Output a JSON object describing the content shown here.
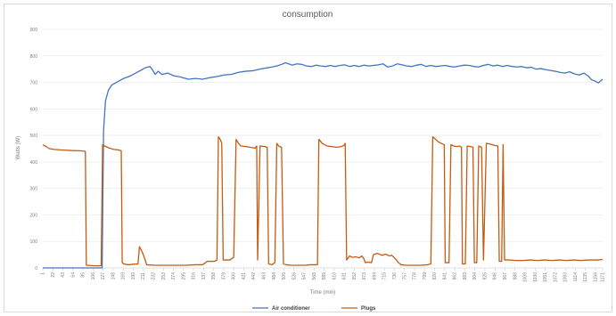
{
  "chart_data": {
    "type": "line",
    "title": "consumption",
    "xlabel": "Time (min)",
    "ylabel": "Watts (W)",
    "ylim": [
      0,
      900
    ],
    "yticks": [
      0,
      100,
      200,
      300,
      400,
      500,
      600,
      700,
      800,
      900
    ],
    "xlim": [
      1,
      1171
    ],
    "xticks": [
      1,
      22,
      43,
      64,
      85,
      106,
      127,
      148,
      169,
      190,
      211,
      232,
      253,
      274,
      295,
      316,
      337,
      358,
      379,
      400,
      421,
      442,
      463,
      484,
      505,
      526,
      547,
      568,
      589,
      610,
      631,
      652,
      673,
      694,
      715,
      736,
      757,
      778,
      799,
      820,
      841,
      862,
      883,
      904,
      925,
      946,
      967,
      988,
      1009,
      1030,
      1051,
      1072,
      1093,
      1114,
      1135,
      1156,
      1171
    ],
    "grid": "horizontal",
    "legend_position": "bottom",
    "series": [
      {
        "name": "Air conditioner",
        "color": "#4472c4",
        "points": [
          [
            1,
            0
          ],
          [
            30,
            0
          ],
          [
            60,
            0
          ],
          [
            90,
            0
          ],
          [
            120,
            0
          ],
          [
            125,
            0
          ],
          [
            128,
            520
          ],
          [
            132,
            630
          ],
          [
            138,
            670
          ],
          [
            145,
            690
          ],
          [
            155,
            700
          ],
          [
            170,
            715
          ],
          [
            185,
            725
          ],
          [
            200,
            740
          ],
          [
            215,
            755
          ],
          [
            225,
            760
          ],
          [
            230,
            748
          ],
          [
            236,
            730
          ],
          [
            242,
            742
          ],
          [
            250,
            730
          ],
          [
            262,
            735
          ],
          [
            275,
            725
          ],
          [
            290,
            720
          ],
          [
            305,
            712
          ],
          [
            320,
            715
          ],
          [
            335,
            712
          ],
          [
            350,
            718
          ],
          [
            365,
            722
          ],
          [
            380,
            728
          ],
          [
            395,
            730
          ],
          [
            410,
            738
          ],
          [
            425,
            742
          ],
          [
            440,
            744
          ],
          [
            455,
            750
          ],
          [
            470,
            755
          ],
          [
            480,
            758
          ],
          [
            490,
            762
          ],
          [
            500,
            768
          ],
          [
            508,
            774
          ],
          [
            515,
            770
          ],
          [
            522,
            765
          ],
          [
            532,
            770
          ],
          [
            542,
            768
          ],
          [
            552,
            762
          ],
          [
            562,
            760
          ],
          [
            572,
            765
          ],
          [
            582,
            762
          ],
          [
            592,
            760
          ],
          [
            602,
            764
          ],
          [
            612,
            760
          ],
          [
            622,
            764
          ],
          [
            632,
            766
          ],
          [
            642,
            760
          ],
          [
            652,
            764
          ],
          [
            662,
            760
          ],
          [
            672,
            765
          ],
          [
            682,
            762
          ],
          [
            692,
            764
          ],
          [
            702,
            766
          ],
          [
            712,
            770
          ],
          [
            722,
            758
          ],
          [
            732,
            762
          ],
          [
            742,
            770
          ],
          [
            752,
            766
          ],
          [
            762,
            762
          ],
          [
            772,
            760
          ],
          [
            782,
            765
          ],
          [
            792,
            768
          ],
          [
            802,
            760
          ],
          [
            812,
            764
          ],
          [
            822,
            760
          ],
          [
            832,
            762
          ],
          [
            842,
            764
          ],
          [
            852,
            760
          ],
          [
            862,
            758
          ],
          [
            872,
            762
          ],
          [
            882,
            765
          ],
          [
            892,
            764
          ],
          [
            902,
            760
          ],
          [
            912,
            758
          ],
          [
            922,
            764
          ],
          [
            932,
            768
          ],
          [
            942,
            762
          ],
          [
            952,
            765
          ],
          [
            962,
            760
          ],
          [
            972,
            764
          ],
          [
            982,
            760
          ],
          [
            992,
            758
          ],
          [
            1002,
            760
          ],
          [
            1012,
            755
          ],
          [
            1022,
            757
          ],
          [
            1032,
            750
          ],
          [
            1042,
            752
          ],
          [
            1052,
            748
          ],
          [
            1062,
            745
          ],
          [
            1072,
            742
          ],
          [
            1082,
            738
          ],
          [
            1092,
            735
          ],
          [
            1102,
            740
          ],
          [
            1112,
            732
          ],
          [
            1122,
            728
          ],
          [
            1132,
            735
          ],
          [
            1140,
            725
          ],
          [
            1148,
            710
          ],
          [
            1155,
            705
          ],
          [
            1162,
            698
          ],
          [
            1171,
            712
          ]
        ]
      },
      {
        "name": "Plugs",
        "color": "#c55a11",
        "points": [
          [
            1,
            465
          ],
          [
            8,
            458
          ],
          [
            15,
            450
          ],
          [
            25,
            447
          ],
          [
            40,
            445
          ],
          [
            60,
            443
          ],
          [
            80,
            442
          ],
          [
            90,
            440
          ],
          [
            92,
            10
          ],
          [
            110,
            8
          ],
          [
            120,
            8
          ],
          [
            123,
            8
          ],
          [
            126,
            465
          ],
          [
            130,
            460
          ],
          [
            140,
            452
          ],
          [
            150,
            447
          ],
          [
            160,
            445
          ],
          [
            165,
            442
          ],
          [
            167,
            20
          ],
          [
            170,
            15
          ],
          [
            180,
            12
          ],
          [
            190,
            14
          ],
          [
            200,
            15
          ],
          [
            203,
            80
          ],
          [
            206,
            70
          ],
          [
            210,
            55
          ],
          [
            215,
            30
          ],
          [
            218,
            12
          ],
          [
            235,
            10
          ],
          [
            260,
            10
          ],
          [
            280,
            10
          ],
          [
            300,
            10
          ],
          [
            320,
            12
          ],
          [
            335,
            12
          ],
          [
            345,
            25
          ],
          [
            360,
            25
          ],
          [
            365,
            30
          ],
          [
            368,
            495
          ],
          [
            372,
            485
          ],
          [
            375,
            470
          ],
          [
            378,
            30
          ],
          [
            392,
            30
          ],
          [
            396,
            35
          ],
          [
            400,
            40
          ],
          [
            405,
            485
          ],
          [
            410,
            470
          ],
          [
            415,
            460
          ],
          [
            425,
            458
          ],
          [
            435,
            455
          ],
          [
            445,
            452
          ],
          [
            448,
            460
          ],
          [
            450,
            30
          ],
          [
            455,
            460
          ],
          [
            465,
            458
          ],
          [
            470,
            455
          ],
          [
            473,
            15
          ],
          [
            480,
            12
          ],
          [
            486,
            20
          ],
          [
            490,
            470
          ],
          [
            494,
            460
          ],
          [
            500,
            455
          ],
          [
            504,
            15
          ],
          [
            510,
            12
          ],
          [
            520,
            10
          ],
          [
            535,
            10
          ],
          [
            550,
            10
          ],
          [
            560,
            12
          ],
          [
            575,
            12
          ],
          [
            578,
            485
          ],
          [
            585,
            470
          ],
          [
            595,
            460
          ],
          [
            605,
            458
          ],
          [
            615,
            455
          ],
          [
            625,
            458
          ],
          [
            630,
            462
          ],
          [
            633,
            470
          ],
          [
            636,
            30
          ],
          [
            642,
            45
          ],
          [
            648,
            40
          ],
          [
            655,
            42
          ],
          [
            662,
            38
          ],
          [
            668,
            45
          ],
          [
            672,
            35
          ],
          [
            675,
            20
          ],
          [
            680,
            22
          ],
          [
            688,
            20
          ],
          [
            692,
            50
          ],
          [
            700,
            55
          ],
          [
            710,
            48
          ],
          [
            718,
            52
          ],
          [
            725,
            45
          ],
          [
            730,
            48
          ],
          [
            735,
            40
          ],
          [
            740,
            30
          ],
          [
            744,
            20
          ],
          [
            750,
            12
          ],
          [
            760,
            10
          ],
          [
            775,
            10
          ],
          [
            790,
            10
          ],
          [
            805,
            12
          ],
          [
            812,
            15
          ],
          [
            816,
            495
          ],
          [
            822,
            485
          ],
          [
            828,
            475
          ],
          [
            834,
            470
          ],
          [
            840,
            465
          ],
          [
            842,
            20
          ],
          [
            850,
            20
          ],
          [
            854,
            465
          ],
          [
            860,
            460
          ],
          [
            866,
            458
          ],
          [
            872,
            460
          ],
          [
            876,
            455
          ],
          [
            878,
            15
          ],
          [
            884,
            15
          ],
          [
            888,
            460
          ],
          [
            894,
            458
          ],
          [
            900,
            456
          ],
          [
            903,
            20
          ],
          [
            908,
            20
          ],
          [
            912,
            460
          ],
          [
            918,
            455
          ],
          [
            922,
            30
          ],
          [
            928,
            470
          ],
          [
            934,
            468
          ],
          [
            940,
            465
          ],
          [
            946,
            462
          ],
          [
            952,
            460
          ],
          [
            955,
            25
          ],
          [
            960,
            25
          ],
          [
            963,
            465
          ],
          [
            966,
            30
          ],
          [
            975,
            30
          ],
          [
            990,
            28
          ],
          [
            1005,
            28
          ],
          [
            1020,
            30
          ],
          [
            1035,
            28
          ],
          [
            1050,
            30
          ],
          [
            1065,
            28
          ],
          [
            1080,
            30
          ],
          [
            1095,
            28
          ],
          [
            1110,
            30
          ],
          [
            1125,
            28
          ],
          [
            1140,
            30
          ],
          [
            1150,
            30
          ],
          [
            1160,
            30
          ],
          [
            1171,
            32
          ]
        ]
      }
    ]
  }
}
